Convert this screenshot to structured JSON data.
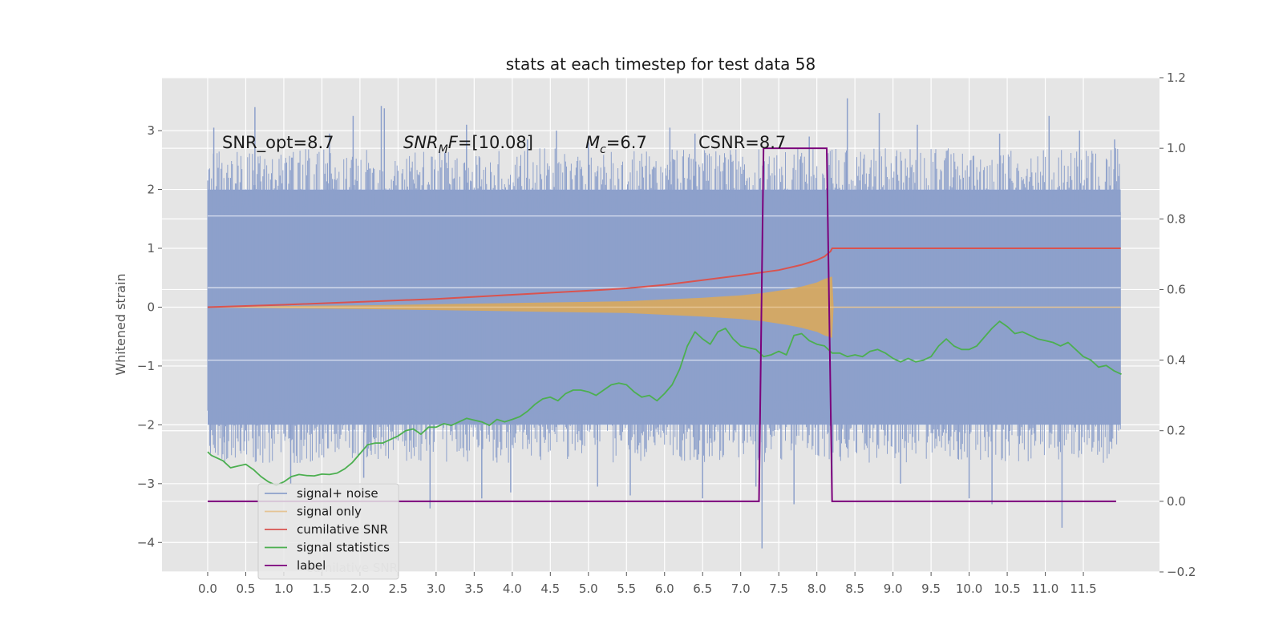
{
  "chart_data": {
    "type": "line",
    "title": "stats at each timestep for test data 58",
    "ylabel": "Whitened strain",
    "xlabel": "",
    "xlim": [
      -0.6,
      12.5
    ],
    "ylim": [
      -4.5,
      3.9
    ],
    "y2lim": [
      -0.2,
      1.2
    ],
    "grid": true,
    "legend_position": "lower-left",
    "x_ticks": [
      0.0,
      0.5,
      1.0,
      1.5,
      2.0,
      2.5,
      3.0,
      3.5,
      4.0,
      4.5,
      5.0,
      5.5,
      6.0,
      6.5,
      7.0,
      7.5,
      8.0,
      8.5,
      9.0,
      9.5,
      10.0,
      10.5,
      11.0,
      11.5
    ],
    "x_tick_labels": [
      "0.0",
      "0.5",
      "1.0",
      "1.5",
      "2.0",
      "2.5",
      "3.0",
      "3.5",
      "4.0",
      "4.5",
      "5.0",
      "5.5",
      "6.0",
      "6.5",
      "7.0",
      "7.5",
      "8.0",
      "8.5",
      "9.0",
      "9.5",
      "10.0",
      "10.5",
      "11.0",
      "11.5"
    ],
    "y_ticks": [
      3,
      2,
      1,
      0,
      -1,
      -2,
      -3,
      -4
    ],
    "y_tick_labels": [
      "3",
      "2",
      "1",
      "0",
      "−1",
      "−2",
      "−3",
      "−4"
    ],
    "y2_ticks": [
      1.2,
      1.0,
      0.8,
      0.6,
      0.4,
      0.2,
      0.0,
      -0.2
    ],
    "y2_tick_labels": [
      "1.2",
      "1.0",
      "0.8",
      "0.6",
      "0.4",
      "0.2",
      "0.0",
      "−0.2"
    ],
    "annotations": [
      {
        "key": "snr_opt",
        "text": "SNR_opt=8.7",
        "x": 0.2,
        "y": 2.85
      },
      {
        "key": "snr_mf",
        "text": "SNR_MF=[10.08]",
        "x": 2.6,
        "y": 2.85
      },
      {
        "key": "mc",
        "text": "M_c=6.7",
        "x": 5.0,
        "y": 2.85
      },
      {
        "key": "csnr",
        "text": "CSNR=8.7",
        "x": 6.5,
        "y": 2.85
      }
    ],
    "series": [
      {
        "name": "signal+ noise",
        "axis": "left",
        "color": "#8da0cb",
        "x_range": [
          0.0,
          11.99
        ],
        "band_range": [
          -2.0,
          2.0
        ],
        "spikes_high": [
          [
            0.08,
            3.05
          ],
          [
            0.62,
            3.4
          ],
          [
            1.6,
            2.95
          ],
          [
            1.91,
            3.25
          ],
          [
            2.28,
            3.42
          ],
          [
            2.32,
            3.38
          ],
          [
            3.4,
            3.1
          ],
          [
            4.2,
            2.85
          ],
          [
            4.58,
            3.0
          ],
          [
            5.0,
            2.8
          ],
          [
            6.07,
            3.05
          ],
          [
            6.4,
            2.95
          ],
          [
            7.9,
            2.9
          ],
          [
            8.4,
            3.55
          ],
          [
            8.82,
            3.3
          ],
          [
            9.32,
            3.1
          ],
          [
            10.4,
            2.95
          ],
          [
            11.05,
            3.25
          ],
          [
            11.45,
            3.0
          ],
          [
            11.91,
            2.85
          ]
        ],
        "spikes_low": [
          [
            0.22,
            -2.3
          ],
          [
            1.09,
            -3.0
          ],
          [
            2.05,
            -2.9
          ],
          [
            2.92,
            -3.42
          ],
          [
            3.6,
            -3.25
          ],
          [
            3.98,
            -3.15
          ],
          [
            5.12,
            -3.05
          ],
          [
            5.55,
            -3.2
          ],
          [
            6.5,
            -3.25
          ],
          [
            7.2,
            -3.05
          ],
          [
            7.28,
            -4.1
          ],
          [
            7.7,
            -3.35
          ],
          [
            8.2,
            -3.1
          ],
          [
            9.1,
            -3.0
          ],
          [
            10.0,
            -3.25
          ],
          [
            10.3,
            -3.35
          ],
          [
            11.22,
            -3.75
          ]
        ]
      },
      {
        "name": "signal only",
        "axis": "left",
        "color": "#e5c494",
        "fill_color": "#d9a95c",
        "envelope": [
          [
            0.0,
            0.0
          ],
          [
            1.0,
            0.02
          ],
          [
            2.0,
            0.03
          ],
          [
            3.0,
            0.05
          ],
          [
            4.0,
            0.07
          ],
          [
            5.0,
            0.09
          ],
          [
            5.5,
            0.1
          ],
          [
            6.0,
            0.13
          ],
          [
            6.5,
            0.16
          ],
          [
            7.0,
            0.2
          ],
          [
            7.3,
            0.24
          ],
          [
            7.6,
            0.3
          ],
          [
            7.8,
            0.35
          ],
          [
            8.0,
            0.42
          ],
          [
            8.1,
            0.48
          ],
          [
            8.2,
            0.52
          ],
          [
            8.22,
            0.0
          ],
          [
            11.99,
            0.0
          ]
        ]
      },
      {
        "name": "cumilative SNR",
        "axis": "left",
        "color": "#d9534f",
        "points": [
          [
            0.0,
            0.0
          ],
          [
            1.0,
            0.04
          ],
          [
            2.0,
            0.09
          ],
          [
            3.0,
            0.14
          ],
          [
            4.0,
            0.21
          ],
          [
            5.0,
            0.28
          ],
          [
            5.5,
            0.32
          ],
          [
            6.0,
            0.38
          ],
          [
            6.5,
            0.46
          ],
          [
            7.0,
            0.54
          ],
          [
            7.5,
            0.63
          ],
          [
            7.8,
            0.72
          ],
          [
            8.0,
            0.8
          ],
          [
            8.1,
            0.86
          ],
          [
            8.18,
            0.95
          ],
          [
            8.2,
            1.0
          ],
          [
            11.99,
            1.0
          ]
        ]
      },
      {
        "name": "signal statistics",
        "axis": "right",
        "color": "#4caf50",
        "points": [
          [
            0.0,
            0.14
          ],
          [
            0.05,
            0.13
          ],
          [
            0.2,
            0.115
          ],
          [
            0.3,
            0.095
          ],
          [
            0.4,
            0.1
          ],
          [
            0.5,
            0.105
          ],
          [
            0.6,
            0.09
          ],
          [
            0.7,
            0.07
          ],
          [
            0.8,
            0.055
          ],
          [
            0.9,
            0.045
          ],
          [
            1.0,
            0.055
          ],
          [
            1.1,
            0.07
          ],
          [
            1.2,
            0.076
          ],
          [
            1.3,
            0.073
          ],
          [
            1.4,
            0.072
          ],
          [
            1.5,
            0.077
          ],
          [
            1.6,
            0.076
          ],
          [
            1.7,
            0.08
          ],
          [
            1.8,
            0.092
          ],
          [
            1.9,
            0.11
          ],
          [
            2.0,
            0.135
          ],
          [
            2.1,
            0.16
          ],
          [
            2.2,
            0.165
          ],
          [
            2.3,
            0.165
          ],
          [
            2.4,
            0.175
          ],
          [
            2.5,
            0.185
          ],
          [
            2.6,
            0.2
          ],
          [
            2.7,
            0.205
          ],
          [
            2.8,
            0.19
          ],
          [
            2.9,
            0.21
          ],
          [
            3.0,
            0.21
          ],
          [
            3.1,
            0.22
          ],
          [
            3.2,
            0.215
          ],
          [
            3.3,
            0.225
          ],
          [
            3.4,
            0.235
          ],
          [
            3.5,
            0.23
          ],
          [
            3.6,
            0.225
          ],
          [
            3.7,
            0.215
          ],
          [
            3.8,
            0.232
          ],
          [
            3.9,
            0.225
          ],
          [
            4.0,
            0.232
          ],
          [
            4.1,
            0.24
          ],
          [
            4.2,
            0.255
          ],
          [
            4.3,
            0.275
          ],
          [
            4.4,
            0.29
          ],
          [
            4.5,
            0.295
          ],
          [
            4.6,
            0.285
          ],
          [
            4.7,
            0.305
          ],
          [
            4.8,
            0.315
          ],
          [
            4.9,
            0.315
          ],
          [
            5.0,
            0.31
          ],
          [
            5.1,
            0.3
          ],
          [
            5.2,
            0.315
          ],
          [
            5.3,
            0.33
          ],
          [
            5.4,
            0.335
          ],
          [
            5.5,
            0.33
          ],
          [
            5.6,
            0.31
          ],
          [
            5.7,
            0.295
          ],
          [
            5.8,
            0.3
          ],
          [
            5.9,
            0.285
          ],
          [
            6.0,
            0.305
          ],
          [
            6.1,
            0.33
          ],
          [
            6.2,
            0.375
          ],
          [
            6.3,
            0.44
          ],
          [
            6.4,
            0.48
          ],
          [
            6.5,
            0.46
          ],
          [
            6.6,
            0.445
          ],
          [
            6.7,
            0.48
          ],
          [
            6.8,
            0.49
          ],
          [
            6.9,
            0.46
          ],
          [
            7.0,
            0.44
          ],
          [
            7.1,
            0.435
          ],
          [
            7.2,
            0.43
          ],
          [
            7.3,
            0.41
          ],
          [
            7.4,
            0.415
          ],
          [
            7.5,
            0.425
          ],
          [
            7.6,
            0.415
          ],
          [
            7.7,
            0.47
          ],
          [
            7.8,
            0.475
          ],
          [
            7.9,
            0.455
          ],
          [
            8.0,
            0.445
          ],
          [
            8.1,
            0.44
          ],
          [
            8.2,
            0.42
          ],
          [
            8.3,
            0.42
          ],
          [
            8.4,
            0.41
          ],
          [
            8.5,
            0.415
          ],
          [
            8.6,
            0.41
          ],
          [
            8.7,
            0.425
          ],
          [
            8.8,
            0.43
          ],
          [
            8.9,
            0.42
          ],
          [
            9.0,
            0.405
          ],
          [
            9.1,
            0.395
          ],
          [
            9.2,
            0.405
          ],
          [
            9.3,
            0.395
          ],
          [
            9.4,
            0.4
          ],
          [
            9.5,
            0.41
          ],
          [
            9.6,
            0.44
          ],
          [
            9.7,
            0.46
          ],
          [
            9.8,
            0.44
          ],
          [
            9.9,
            0.43
          ],
          [
            10.0,
            0.43
          ],
          [
            10.1,
            0.44
          ],
          [
            10.2,
            0.465
          ],
          [
            10.3,
            0.49
          ],
          [
            10.4,
            0.51
          ],
          [
            10.5,
            0.495
          ],
          [
            10.6,
            0.475
          ],
          [
            10.7,
            0.48
          ],
          [
            10.8,
            0.47
          ],
          [
            10.9,
            0.46
          ],
          [
            11.0,
            0.455
          ],
          [
            11.1,
            0.45
          ],
          [
            11.2,
            0.44
          ],
          [
            11.3,
            0.45
          ],
          [
            11.4,
            0.43
          ],
          [
            11.5,
            0.41
          ],
          [
            11.6,
            0.4
          ],
          [
            11.7,
            0.38
          ],
          [
            11.8,
            0.385
          ],
          [
            11.9,
            0.37
          ],
          [
            12.0,
            0.36
          ]
        ]
      },
      {
        "name": "label",
        "axis": "right",
        "color": "#7b007b",
        "points": [
          [
            0.0,
            0.0
          ],
          [
            7.24,
            0.0
          ],
          [
            7.3,
            1.0
          ],
          [
            8.13,
            1.0
          ],
          [
            8.2,
            0.0
          ],
          [
            11.93,
            0.0
          ]
        ]
      }
    ]
  }
}
